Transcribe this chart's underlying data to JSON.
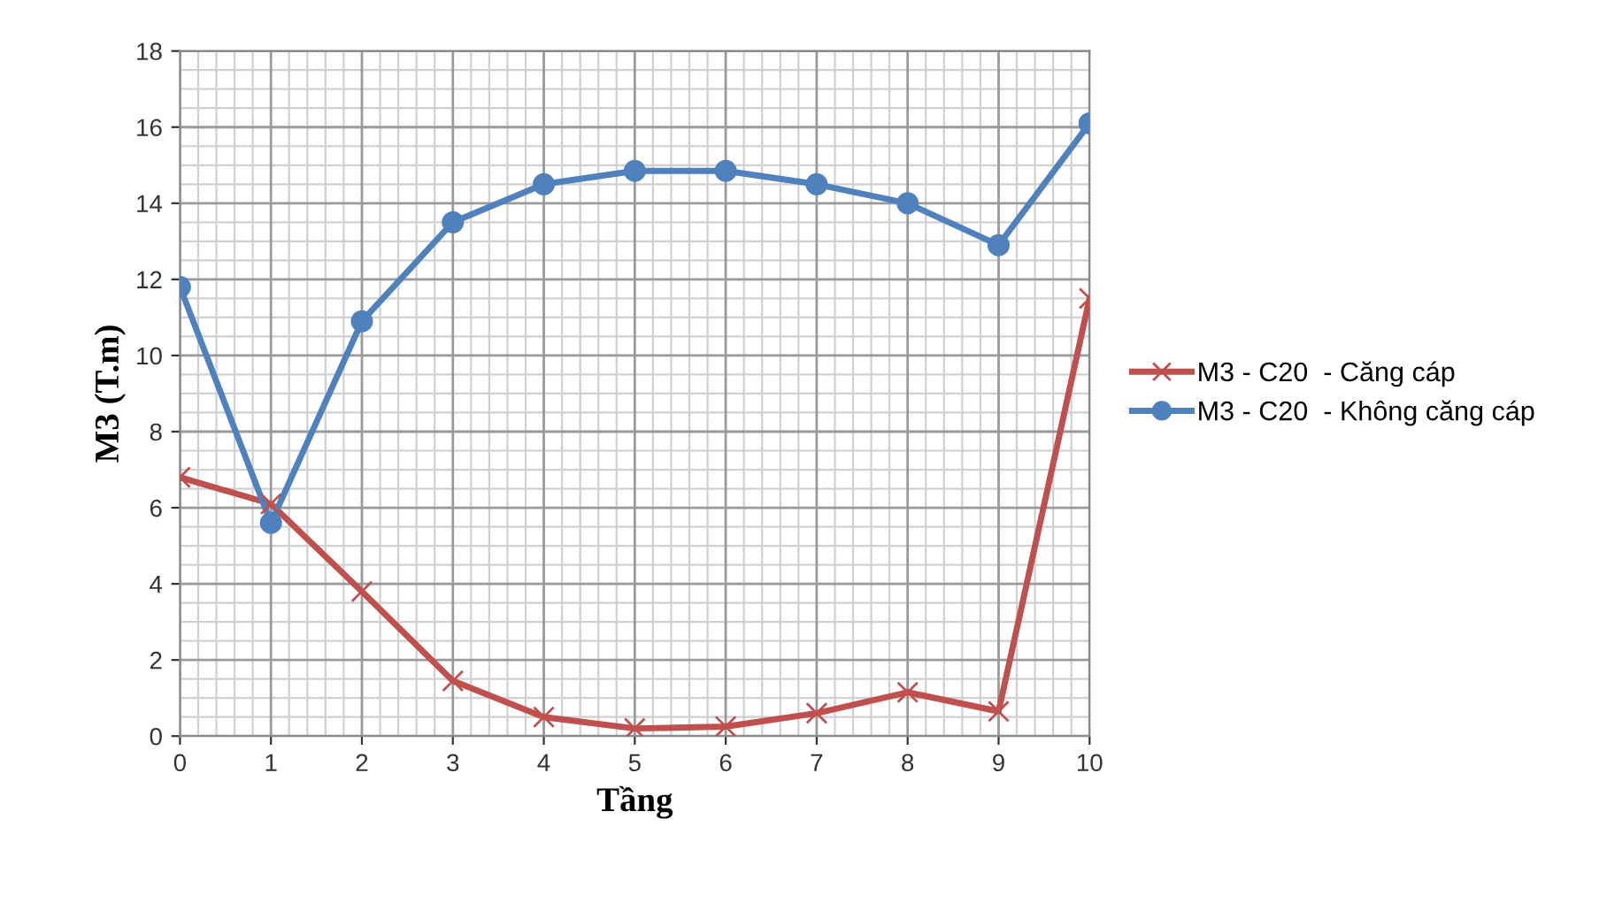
{
  "chart_data": {
    "type": "line",
    "xlabel": "Tầng",
    "ylabel": "M3 (T.m)",
    "x": [
      0,
      1,
      2,
      3,
      4,
      5,
      6,
      7,
      8,
      9,
      10
    ],
    "series": [
      {
        "name": "M3 - C20  - Căng cáp",
        "color": "#c0504d",
        "marker": "cross",
        "values": [
          6.8,
          6.1,
          3.8,
          1.45,
          0.5,
          0.2,
          0.25,
          0.6,
          1.15,
          0.65,
          11.5
        ]
      },
      {
        "name": "M3 - C20  - Không căng cáp",
        "color": "#4f81bd",
        "marker": "circle",
        "values": [
          11.8,
          5.6,
          10.9,
          13.5,
          14.5,
          14.85,
          14.85,
          14.5,
          14.0,
          12.9,
          16.1
        ]
      }
    ],
    "xlim": [
      0,
      10
    ],
    "xticks": [
      0,
      1,
      2,
      3,
      4,
      5,
      6,
      7,
      8,
      9,
      10
    ],
    "ylim": [
      0,
      18
    ],
    "yticks": [
      0,
      2,
      4,
      6,
      8,
      10,
      12,
      14,
      16,
      18
    ],
    "grid": true,
    "legend": "right",
    "line_style": "solid"
  }
}
